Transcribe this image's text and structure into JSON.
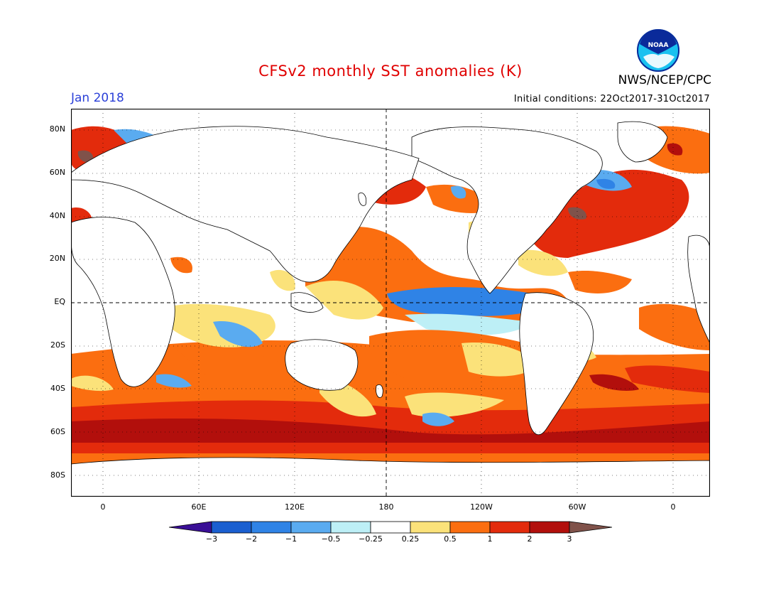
{
  "header": {
    "title": "CFSv2 monthly SST anomalies (K)",
    "organization": "NWS/NCEP/CPC",
    "logo_text": "NOAA",
    "month": "Jan 2018",
    "initial_conditions": "Initial conditions: 22Oct2017-31Oct2017"
  },
  "map": {
    "projection": "equirectangular",
    "lon_range": [
      -20,
      380
    ],
    "lat_range": [
      -90,
      90
    ],
    "grid": "dashed",
    "lat_labels": [
      "80N",
      "60N",
      "40N",
      "20N",
      "EQ",
      "20S",
      "40S",
      "60S",
      "80S"
    ],
    "lon_labels": [
      "0",
      "60E",
      "120E",
      "180",
      "120W",
      "60W",
      "0"
    ]
  },
  "colorbar": {
    "levels": [
      "-3",
      "-2",
      "-1",
      "-0.5",
      "-0.25",
      "0.25",
      "0.5",
      "1",
      "2",
      "3"
    ],
    "colors": [
      "#3a0f96",
      "#1a5fd0",
      "#2f83e6",
      "#5aabf0",
      "#bdeff6",
      "#ffffff",
      "#fbe27a",
      "#fb6e10",
      "#e32b0c",
      "#b20f0c",
      "#80524a"
    ]
  },
  "palette": {
    "land": "#ffffff",
    "coast": "#000000",
    "strong_cool": "#2f83e6",
    "cool": "#5aabf0",
    "weak_cool": "#bdeff6",
    "weak_warm": "#fbe27a",
    "warm": "#fb6e10",
    "hot": "#e32b0c",
    "very_hot": "#b20f0c",
    "extreme": "#80524a"
  }
}
